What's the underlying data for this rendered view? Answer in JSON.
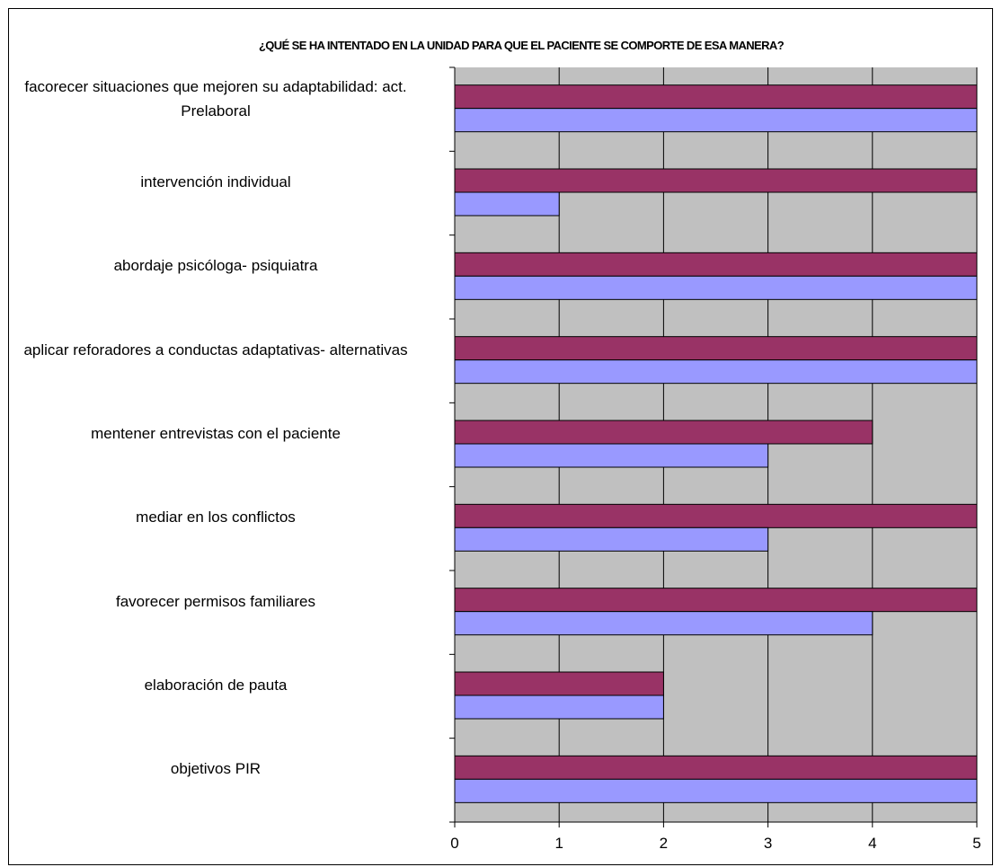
{
  "chart_data": {
    "type": "bar",
    "orientation": "horizontal",
    "title": "¿QUÉ SE HA INTENTADO EN LA UNIDAD PARA QUE EL PACIENTE SE COMPORTE DE ESA MANERA?",
    "categories": [
      "facorecer situaciones que mejoren su adaptabilidad: act. Prelaboral",
      "intervención individual",
      "abordaje psicóloga- psiquiatra",
      "aplicar reforadores a conductas adaptativas- alternativas",
      "mentener entrevistas con el paciente",
      "mediar en los conflictos",
      "favorecer permisos familiares",
      "elaboración de pauta",
      "objetivos PIR"
    ],
    "series": [
      {
        "color": "#993366",
        "values": [
          5,
          5,
          5,
          5,
          4,
          5,
          5,
          2,
          5
        ]
      },
      {
        "color": "#9999ff",
        "values": [
          5,
          1,
          5,
          5,
          3,
          3,
          4,
          2,
          5
        ]
      }
    ],
    "xlim": [
      0,
      5
    ],
    "xticks": [
      0,
      1,
      2,
      3,
      4,
      5
    ],
    "grid": true,
    "legend": "none",
    "plot_background": "#c0c0c0"
  }
}
